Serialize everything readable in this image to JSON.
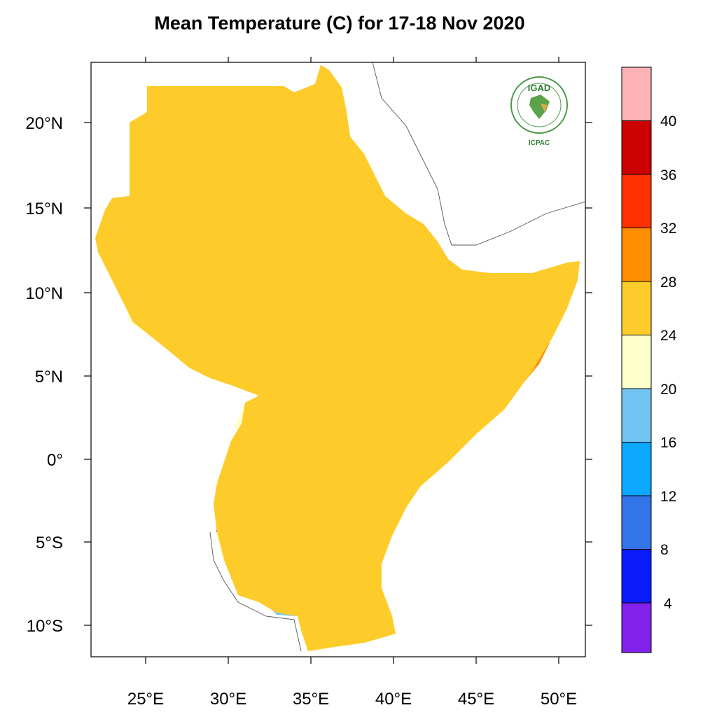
{
  "title": "Mean Temperature (C) for 17-18 Nov 2020",
  "axes": {
    "lon_labels": [
      "25°E",
      "30°E",
      "35°E",
      "40°E",
      "45°E",
      "50°E"
    ],
    "lat_labels": [
      "20°N",
      "15°N",
      "10°N",
      "5°N",
      "0°",
      "5°S",
      "10°S"
    ]
  },
  "colorbar": {
    "labels": [
      "40",
      "36",
      "32",
      "28",
      "24",
      "20",
      "16",
      "12",
      "8",
      "4"
    ],
    "colors": [
      "#fdb3b6",
      "#cd0001",
      "#fe3200",
      "#fe8e00",
      "#fdcc2a",
      "#ffffcc",
      "#72c5f2",
      "#0ca7ff",
      "#3275e8",
      "#0a1bfb",
      "#8222ea"
    ]
  },
  "logo": {
    "name": "IGAD",
    "caption": "ICPAC",
    "icon": "igad-emblem-icon"
  },
  "map_colors": {
    "land_warm": "#fdcc2a",
    "land_mild": "#ffffcc",
    "land_cool": "#72c5f2",
    "land_cold": "#0ca7ff",
    "land_very_cold": "#3275e8",
    "land_hot": "#fe8e00"
  }
}
